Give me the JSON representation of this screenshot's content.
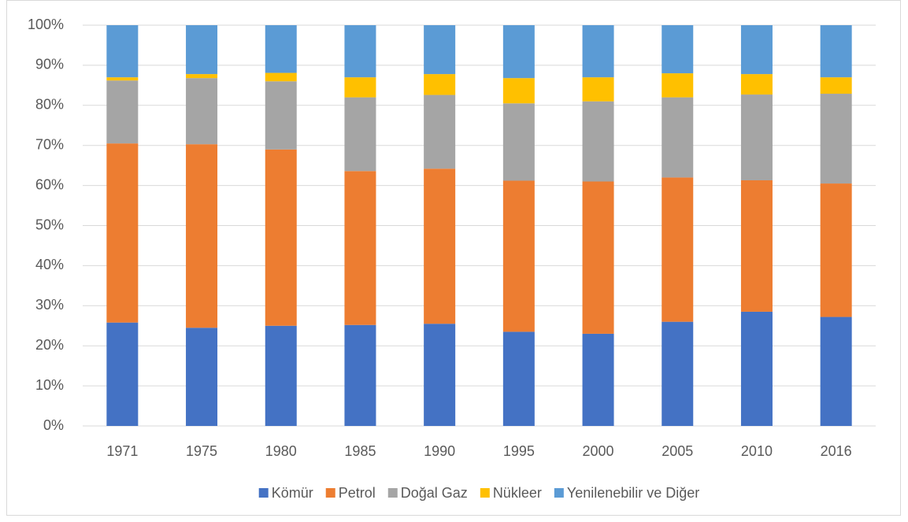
{
  "chart_data": {
    "type": "stacked_bar",
    "categories": [
      "1971",
      "1975",
      "1980",
      "1985",
      "1990",
      "1995",
      "2000",
      "2005",
      "2010",
      "2016"
    ],
    "series": [
      {
        "name": "Kömür",
        "color": "#4472c4",
        "values": [
          25.8,
          24.5,
          25,
          25.2,
          25.5,
          23.5,
          23,
          26,
          28.5,
          27.2
        ]
      },
      {
        "name": "Petrol",
        "color": "#ed7d31",
        "values": [
          44.7,
          45.8,
          44,
          38.4,
          38.7,
          37.7,
          38,
          36,
          32.8,
          33.3
        ]
      },
      {
        "name": "Doğal Gaz",
        "color": "#a5a5a5",
        "values": [
          15.7,
          16.5,
          17,
          18.4,
          18.4,
          19.3,
          20,
          20,
          21.4,
          22.4
        ]
      },
      {
        "name": "Nükleer",
        "color": "#ffc000",
        "values": [
          0.8,
          1,
          2.1,
          5,
          5.2,
          6.3,
          6,
          6,
          5.1,
          4.1
        ]
      },
      {
        "name": "Yenilenebilir ve Diğer",
        "color": "#5b9bd5",
        "values": [
          13,
          12.2,
          11.9,
          13,
          12.2,
          13.2,
          13,
          12,
          12.2,
          13
        ]
      }
    ],
    "ylim": [
      0,
      100
    ],
    "yticks": [
      {
        "value": 0,
        "label": "0%"
      },
      {
        "value": 10,
        "label": "10%"
      },
      {
        "value": 20,
        "label": "20%"
      },
      {
        "value": 30,
        "label": "30%"
      },
      {
        "value": 40,
        "label": "40%"
      },
      {
        "value": 50,
        "label": "50%"
      },
      {
        "value": 60,
        "label": "60%"
      },
      {
        "value": 70,
        "label": "70%"
      },
      {
        "value": 80,
        "label": "80%"
      },
      {
        "value": 90,
        "label": "90%"
      },
      {
        "value": 100,
        "label": "100%"
      }
    ],
    "grid": true,
    "legend": "bottom"
  }
}
